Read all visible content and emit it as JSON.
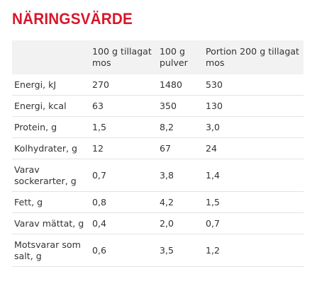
{
  "title": "NÄRINGSVÄRDE",
  "columns": [
    "",
    "100 g tillagat mos",
    "100 g pulver",
    "Portion 200 g tillagat mos"
  ],
  "rows": [
    {
      "label": "Energi, kJ",
      "values": [
        "270",
        "1480",
        "530"
      ]
    },
    {
      "label": "Energi, kcal",
      "values": [
        "63",
        "350",
        "130"
      ]
    },
    {
      "label": "Protein, g",
      "values": [
        "1,5",
        "8,2",
        "3,0"
      ]
    },
    {
      "label": "Kolhydrater, g",
      "values": [
        "12",
        "67",
        "24"
      ]
    },
    {
      "label": "Varav sockerarter, g",
      "values": [
        "0,7",
        "3,8",
        "1,4"
      ]
    },
    {
      "label": "Fett, g",
      "values": [
        "0,8",
        "4,2",
        "1,5"
      ]
    },
    {
      "label": "Varav mättat, g",
      "values": [
        "0,4",
        "2,0",
        "0,7"
      ]
    },
    {
      "label": "Motsvarar som salt, g",
      "values": [
        "0,6",
        "3,5",
        "1,2"
      ]
    }
  ],
  "colors": {
    "title": "#d8172a",
    "header_background": "#f2f2f2",
    "row_divider": "#e2e2e2",
    "text": "#333333"
  }
}
